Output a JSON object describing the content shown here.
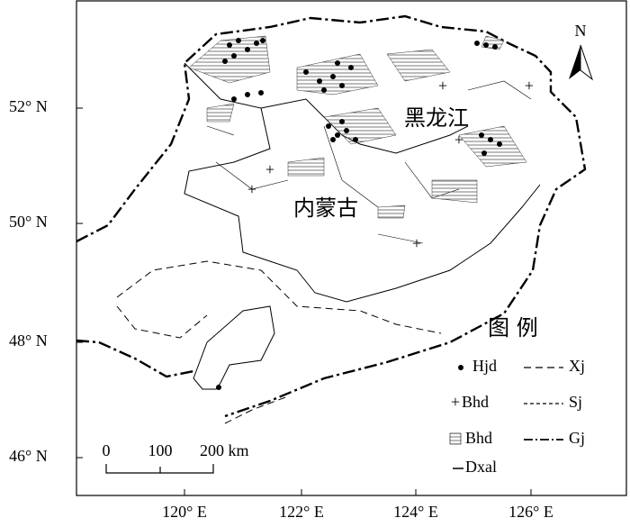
{
  "map": {
    "latitude_labels": [
      "52° N",
      "50° N",
      "48° N",
      "46° N"
    ],
    "longitude_labels": [
      "120° E",
      "122° E",
      "124° E",
      "126° E"
    ],
    "region_labels": [
      "黑龙江",
      "内蒙古"
    ],
    "north_arrow": "N",
    "scale_bar": [
      "0",
      "100",
      "200 km"
    ],
    "legend": {
      "title": "图 例",
      "items": [
        "Hjd",
        "Bhd",
        "Bhd",
        "Dxal",
        "Xj",
        "Sj",
        "Gj"
      ]
    }
  }
}
